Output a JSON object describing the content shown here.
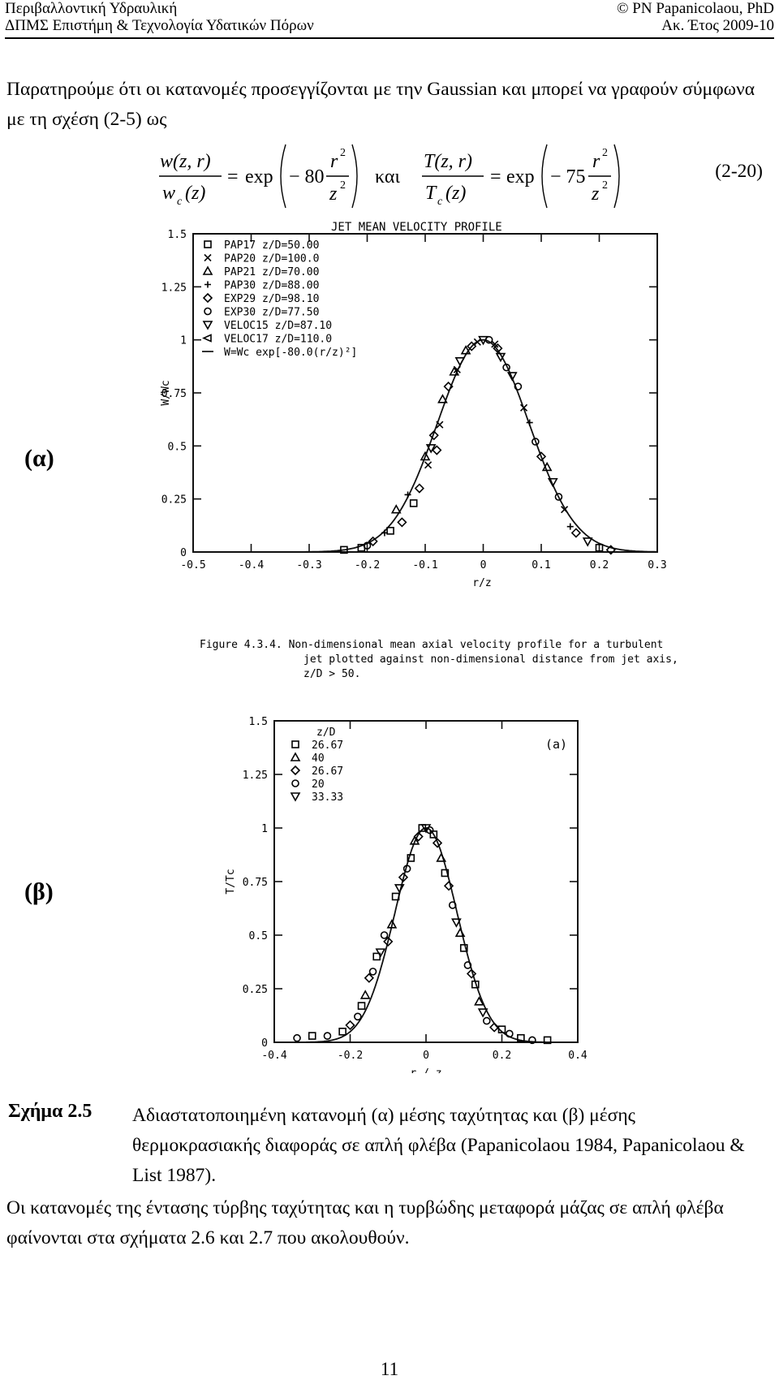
{
  "header": {
    "course": "Περιβαλλοντική Υδραυλική",
    "program": "ΔΠΜΣ Επιστήμη & Τεχνολογία Υδατικών Πόρων",
    "author": "© PN Papanicolaou, PhD",
    "year": "Ακ. Έτος 2009-10"
  },
  "intro_paragraph": "Παρατηρούμε ότι οι κατανομές προσεγγίζονται με την Gaussian και μπορεί να γραφούν σύμφωνα με τη σχέση (2-5) ως",
  "equation": {
    "lhs1_num": "w(z, r)",
    "lhs1_den": "w",
    "lhs1_den_sub": "c",
    "lhs1_den_arg": "(z)",
    "eq_sign": "=",
    "exp_word": "exp",
    "coef1": "− 80",
    "ratio_num": "r",
    "ratio_den": "z",
    "power": "2",
    "connector": "και",
    "lhs2_num": "T(z, r)",
    "lhs2_den": "T",
    "lhs2_den_sub": "c",
    "lhs2_den_arg": "(z)",
    "coef2": "− 75",
    "number": "(2-20)"
  },
  "figure_a": {
    "panel_label": "(α)",
    "caption_lines": [
      "Figure 4.3.4.  Non-dimensional mean axial velocity profile for a turbulent",
      "jet plotted against non-dimensional distance from jet axis,",
      "z/D > 50."
    ]
  },
  "figure_b": {
    "panel_label": "(β)"
  },
  "chart_data": [
    {
      "type": "scatter",
      "title": "JET MEAN VELOCITY PROFILE",
      "xlabel": "r/z",
      "ylabel": "W/Wc",
      "xlim": [
        -0.5,
        0.3
      ],
      "ylim": [
        0,
        1.5
      ],
      "xticks": [
        "-0.5",
        "-0.4",
        "-0.3",
        "-0.2",
        "-0.1",
        "0",
        "0.1",
        "0.2",
        "0.3"
      ],
      "yticks": [
        "0",
        "0.25",
        "0.5",
        "0.75",
        "1",
        "1.25",
        "1.5"
      ],
      "legend": [
        {
          "symbol": "□",
          "label": "PAP17  z/D=50.00"
        },
        {
          "symbol": "×",
          "label": "PAP20  z/D=100.0"
        },
        {
          "symbol": "△",
          "label": "PAP21  z/D=70.00"
        },
        {
          "symbol": "+",
          "label": "PAP30  z/D=88.00"
        },
        {
          "symbol": "◇",
          "label": "EXP29  z/D=98.10"
        },
        {
          "symbol": "○",
          "label": "EXP30  z/D=77.50"
        },
        {
          "symbol": "▽",
          "label": "VELOC15  z/D=87.10"
        },
        {
          "symbol": "◁",
          "label": "VELOC17  z/D=110.0"
        },
        {
          "symbol": "—",
          "label": "W=Wc exp[-80.0(r/z)²]"
        }
      ],
      "curve": {
        "amplitude": 1.0,
        "coefficient": 80.0
      },
      "points": {
        "x": [
          -0.24,
          -0.21,
          -0.2,
          -0.19,
          -0.17,
          -0.16,
          -0.15,
          -0.14,
          -0.13,
          -0.12,
          -0.11,
          -0.1,
          -0.095,
          -0.09,
          -0.085,
          -0.08,
          -0.075,
          -0.07,
          -0.06,
          -0.05,
          -0.045,
          -0.04,
          -0.03,
          -0.02,
          -0.01,
          0.0,
          0.01,
          0.02,
          0.025,
          0.03,
          0.04,
          0.05,
          0.06,
          0.07,
          0.08,
          0.09,
          0.1,
          0.11,
          0.12,
          0.13,
          0.14,
          0.15,
          0.16,
          0.18,
          0.2,
          0.22
        ],
        "y": [
          0.01,
          0.02,
          0.03,
          0.05,
          0.09,
          0.1,
          0.2,
          0.14,
          0.27,
          0.23,
          0.3,
          0.45,
          0.41,
          0.49,
          0.55,
          0.48,
          0.6,
          0.72,
          0.78,
          0.85,
          0.86,
          0.9,
          0.95,
          0.97,
          0.99,
          1.0,
          1.0,
          0.98,
          0.96,
          0.92,
          0.87,
          0.83,
          0.78,
          0.68,
          0.61,
          0.52,
          0.45,
          0.4,
          0.33,
          0.26,
          0.2,
          0.12,
          0.09,
          0.05,
          0.02,
          0.01
        ],
        "symbols": [
          "□",
          "□",
          "○",
          "◇",
          "+",
          "□",
          "△",
          "◇",
          "+",
          "□",
          "◇",
          "△",
          "×",
          "▽",
          "◇",
          "◇",
          "×",
          "△",
          "◇",
          "△",
          "×",
          "▽",
          "△",
          "◇",
          "×",
          "▽",
          "○",
          "×",
          "◇",
          "▽",
          "○",
          "▽",
          "○",
          "×",
          "+",
          "○",
          "◇",
          "△",
          "▽",
          "○",
          "×",
          "+",
          "◇",
          "▽",
          "□",
          "◇"
        ]
      }
    },
    {
      "type": "scatter",
      "title": "",
      "xlabel": "r / z",
      "ylabel": "T/Tc",
      "xlim": [
        -0.4,
        0.4
      ],
      "ylim": [
        0,
        1.5
      ],
      "xticks": [
        "-0.4",
        "-0.2",
        "0",
        "0.2",
        "0.4"
      ],
      "yticks": [
        "0",
        "0.25",
        "0.5",
        "0.75",
        "1",
        "1.25",
        "1.5"
      ],
      "panel_tag": "(a)",
      "legend_title": "z/D",
      "legend": [
        {
          "symbol": "□",
          "label": "26.67"
        },
        {
          "symbol": "△",
          "label": "40"
        },
        {
          "symbol": "◇",
          "label": "26.67"
        },
        {
          "symbol": "○",
          "label": "20"
        },
        {
          "symbol": "▽",
          "label": "33.33"
        }
      ],
      "curve": {
        "amplitude": 1.0,
        "coefficient": 75.0
      },
      "points": {
        "x": [
          -0.34,
          -0.3,
          -0.26,
          -0.22,
          -0.2,
          -0.18,
          -0.17,
          -0.16,
          -0.15,
          -0.14,
          -0.13,
          -0.12,
          -0.11,
          -0.1,
          -0.09,
          -0.08,
          -0.07,
          -0.06,
          -0.05,
          -0.04,
          -0.03,
          -0.02,
          -0.01,
          0.0,
          0.01,
          0.02,
          0.03,
          0.04,
          0.05,
          0.06,
          0.07,
          0.08,
          0.09,
          0.1,
          0.11,
          0.12,
          0.13,
          0.14,
          0.15,
          0.16,
          0.18,
          0.2,
          0.22,
          0.25,
          0.28,
          0.32
        ],
        "y": [
          0.02,
          0.03,
          0.03,
          0.05,
          0.08,
          0.12,
          0.17,
          0.22,
          0.3,
          0.33,
          0.4,
          0.42,
          0.5,
          0.47,
          0.55,
          0.68,
          0.72,
          0.77,
          0.81,
          0.86,
          0.94,
          0.96,
          1.0,
          1.0,
          0.99,
          0.97,
          0.93,
          0.86,
          0.79,
          0.73,
          0.64,
          0.56,
          0.51,
          0.44,
          0.36,
          0.32,
          0.27,
          0.19,
          0.14,
          0.1,
          0.07,
          0.06,
          0.04,
          0.02,
          0.01,
          0.01
        ],
        "symbols": [
          "○",
          "□",
          "○",
          "□",
          "◇",
          "○",
          "□",
          "△",
          "◇",
          "○",
          "□",
          "▽",
          "○",
          "◇",
          "△",
          "□",
          "▽",
          "◇",
          "○",
          "□",
          "△",
          "◇",
          "□",
          "▽",
          "○",
          "□",
          "◇",
          "△",
          "□",
          "◇",
          "○",
          "▽",
          "△",
          "□",
          "○",
          "◇",
          "□",
          "△",
          "▽",
          "○",
          "◇",
          "□",
          "○",
          "□",
          "○",
          "□"
        ]
      }
    }
  ],
  "figure_caption": {
    "title": "Σχήμα 2.5",
    "text": "Αδιαστατοποιημένη κατανομή (α) μέσης ταχύτητας και (β) μέσης θερμοκρασιακής διαφοράς σε απλή φλέβα (Papanicolaou 1984, Papanicolaou & List 1987)."
  },
  "closing_paragraph": "Οι κατανομές της έντασης τύρβης ταχύτητας και η τυρβώδης μεταφορά μάζας σε απλή φλέβα φαίνονται στα σχήματα 2.6 και 2.7 που ακολουθούν.",
  "page_number": "11"
}
